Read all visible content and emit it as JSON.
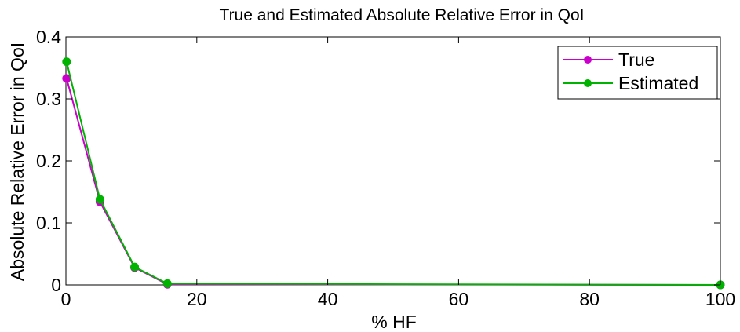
{
  "chart_data": {
    "type": "line",
    "title": "True and Estimated Absolute Relative Error in QoI",
    "xlabel": "% HF",
    "ylabel": "Absolute Relative Error in QoI",
    "xlim": [
      0,
      100
    ],
    "ylim": [
      0,
      0.4
    ],
    "xticks": [
      0,
      20,
      40,
      60,
      80,
      100
    ],
    "xtick_labels": [
      "0",
      "20",
      "40",
      "60",
      "80",
      "100"
    ],
    "yticks": [
      0,
      0.1,
      0.2,
      0.3,
      0.4
    ],
    "ytick_labels": [
      "0",
      "0.1",
      "0.2",
      "0.3",
      "0.4"
    ],
    "grid": false,
    "legend_position": "top-right",
    "series": [
      {
        "name": "True",
        "color": "#cc00cc",
        "marker": "circle",
        "x": [
          0.1,
          5.2,
          10.5,
          15.5,
          100
        ],
        "y": [
          0.333,
          0.134,
          0.028,
          0.001,
          0.0
        ]
      },
      {
        "name": "Estimated",
        "color": "#00b300",
        "marker": "circle",
        "x": [
          0.1,
          5.2,
          10.5,
          15.5,
          100
        ],
        "y": [
          0.36,
          0.138,
          0.029,
          0.002,
          0.0
        ]
      }
    ]
  }
}
